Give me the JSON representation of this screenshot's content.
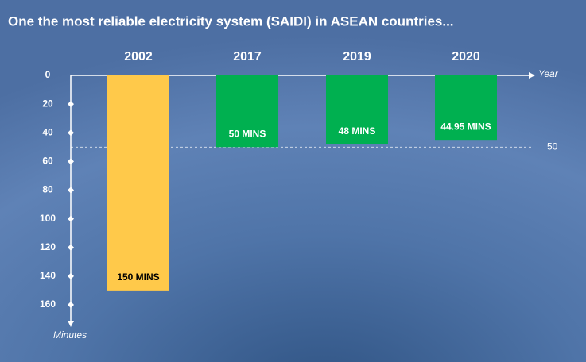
{
  "chart_data": {
    "type": "bar",
    "title": "One the most reliable electricity system (SAIDI) in ASEAN countries...",
    "categories": [
      "2002",
      "2017",
      "2019",
      "2020"
    ],
    "values": [
      150,
      50,
      48,
      44.95
    ],
    "value_labels": [
      "150 MINS",
      "50 MINS",
      "48 MINS",
      "44.95 MINS"
    ],
    "colors": [
      "#ffc94a",
      "#00b050",
      "#00b050",
      "#00b050"
    ],
    "value_label_colors": [
      "#000000",
      "#ffffff",
      "#ffffff",
      "#ffffff"
    ],
    "x_label": "Year",
    "y_label": "Minutes",
    "ylim": [
      0,
      170
    ],
    "yticks": [
      0,
      20,
      40,
      60,
      80,
      100,
      120,
      140,
      160
    ],
    "y_inverted": true,
    "reference_line": 50
  }
}
